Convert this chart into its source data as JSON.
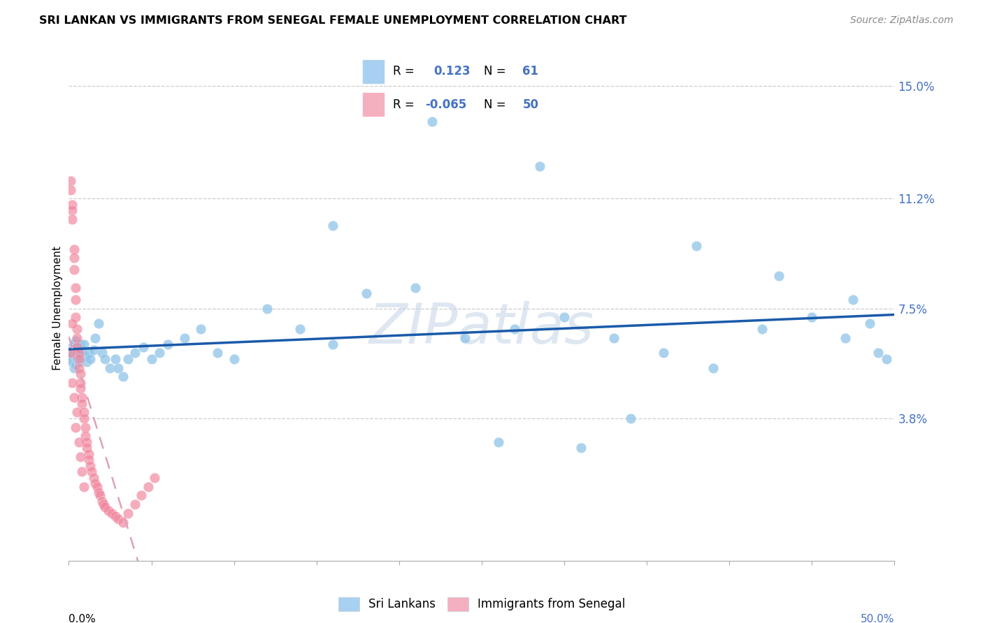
{
  "title": "SRI LANKAN VS IMMIGRANTS FROM SENEGAL FEMALE UNEMPLOYMENT CORRELATION CHART",
  "source": "Source: ZipAtlas.com",
  "ylabel": "Female Unemployment",
  "yticks_labels": [
    "3.8%",
    "7.5%",
    "11.2%",
    "15.0%"
  ],
  "ytick_vals": [
    0.038,
    0.075,
    0.112,
    0.15
  ],
  "sri_lankan_color": "#8fc4e8",
  "senegal_color": "#f0829a",
  "sri_lankan_legend_color": "#a8d0f0",
  "senegal_legend_color": "#f5b0c0",
  "trend_sri_color": "#1a5aaa",
  "trend_sen_color": "#e0a0b5",
  "watermark_color": "#c8d8e8",
  "xmin": 0.0,
  "xmax": 0.5,
  "ymin": -0.01,
  "ymax": 0.16,
  "sri_x": [
    0.001,
    0.001,
    0.002,
    0.002,
    0.002,
    0.003,
    0.003,
    0.003,
    0.004,
    0.004,
    0.004,
    0.005,
    0.005,
    0.005,
    0.006,
    0.006,
    0.007,
    0.007,
    0.008,
    0.008,
    0.009,
    0.01,
    0.011,
    0.012,
    0.013,
    0.015,
    0.016,
    0.018,
    0.02,
    0.022,
    0.025,
    0.028,
    0.03,
    0.033,
    0.036,
    0.04,
    0.045,
    0.05,
    0.055,
    0.06,
    0.07,
    0.08,
    0.09,
    0.1,
    0.12,
    0.14,
    0.16,
    0.18,
    0.21,
    0.24,
    0.27,
    0.3,
    0.33,
    0.36,
    0.39,
    0.42,
    0.45,
    0.47,
    0.485,
    0.49,
    0.495
  ],
  "sri_y": [
    0.06,
    0.058,
    0.062,
    0.059,
    0.057,
    0.063,
    0.061,
    0.055,
    0.059,
    0.056,
    0.064,
    0.06,
    0.058,
    0.062,
    0.061,
    0.057,
    0.06,
    0.063,
    0.059,
    0.061,
    0.063,
    0.059,
    0.057,
    0.06,
    0.058,
    0.061,
    0.065,
    0.07,
    0.06,
    0.058,
    0.055,
    0.058,
    0.055,
    0.052,
    0.058,
    0.06,
    0.062,
    0.058,
    0.06,
    0.063,
    0.065,
    0.068,
    0.06,
    0.058,
    0.075,
    0.068,
    0.063,
    0.08,
    0.082,
    0.065,
    0.068,
    0.072,
    0.065,
    0.06,
    0.055,
    0.068,
    0.072,
    0.065,
    0.07,
    0.06,
    0.058
  ],
  "sri_outliers_x": [
    0.22,
    0.285,
    0.38,
    0.16,
    0.43,
    0.475,
    0.26,
    0.31,
    0.34
  ],
  "sri_outliers_y": [
    0.138,
    0.123,
    0.096,
    0.103,
    0.086,
    0.078,
    0.03,
    0.028,
    0.038
  ],
  "sen_x": [
    0.001,
    0.001,
    0.002,
    0.002,
    0.002,
    0.003,
    0.003,
    0.003,
    0.004,
    0.004,
    0.004,
    0.005,
    0.005,
    0.005,
    0.006,
    0.006,
    0.006,
    0.007,
    0.007,
    0.007,
    0.008,
    0.008,
    0.009,
    0.009,
    0.01,
    0.01,
    0.011,
    0.011,
    0.012,
    0.012,
    0.013,
    0.014,
    0.015,
    0.016,
    0.017,
    0.018,
    0.019,
    0.02,
    0.021,
    0.022,
    0.024,
    0.026,
    0.028,
    0.03,
    0.033,
    0.036,
    0.04,
    0.044,
    0.048,
    0.052
  ],
  "sen_y": [
    0.118,
    0.115,
    0.11,
    0.108,
    0.105,
    0.095,
    0.092,
    0.088,
    0.082,
    0.078,
    0.072,
    0.068,
    0.065,
    0.062,
    0.06,
    0.058,
    0.055,
    0.053,
    0.05,
    0.048,
    0.045,
    0.043,
    0.04,
    0.038,
    0.035,
    0.032,
    0.03,
    0.028,
    0.026,
    0.024,
    0.022,
    0.02,
    0.018,
    0.016,
    0.015,
    0.013,
    0.012,
    0.01,
    0.009,
    0.008,
    0.007,
    0.006,
    0.005,
    0.004,
    0.003,
    0.006,
    0.009,
    0.012,
    0.015,
    0.018
  ],
  "sen_extra_x": [
    0.001,
    0.002,
    0.002,
    0.003,
    0.004,
    0.005,
    0.006,
    0.007,
    0.008,
    0.009
  ],
  "sen_extra_y": [
    0.06,
    0.07,
    0.05,
    0.045,
    0.035,
    0.04,
    0.03,
    0.025,
    0.02,
    0.015
  ]
}
